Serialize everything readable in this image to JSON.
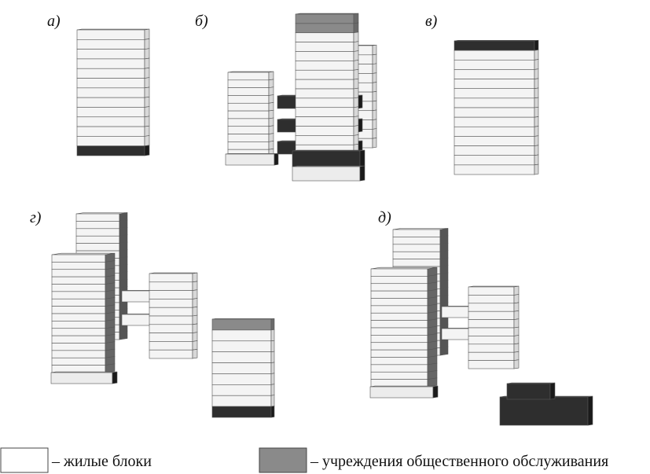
{
  "panels": [
    {
      "label": "а)"
    },
    {
      "label": "б)"
    },
    {
      "label": "в)"
    },
    {
      "label": "г)"
    },
    {
      "label": "д)"
    }
  ],
  "legend": [
    {
      "text": "– жилые блоки"
    },
    {
      "text": "– учреждения общественного обслуживания"
    }
  ]
}
